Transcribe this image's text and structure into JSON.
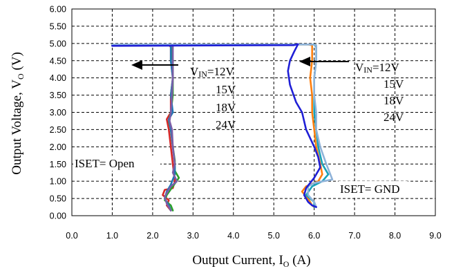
{
  "chart_data": {
    "type": "line",
    "xlabel": {
      "main": "Output Current, I",
      "sub": "O",
      "unit": " (A)"
    },
    "ylabel": {
      "main": "Output Voltage, V",
      "sub": "O",
      "unit": " (V)"
    },
    "xlim": [
      0,
      9
    ],
    "ylim": [
      0,
      6
    ],
    "grid": true,
    "x_ticks": [
      "0.0",
      "1.0",
      "2.0",
      "3.0",
      "4.0",
      "5.0",
      "6.0",
      "7.0",
      "8.0",
      "9.0"
    ],
    "y_ticks": [
      "0.00",
      "0.50",
      "1.00",
      "1.50",
      "2.00",
      "2.50",
      "3.00",
      "3.50",
      "4.00",
      "4.50",
      "5.00",
      "5.50",
      "6.00"
    ],
    "annotations": {
      "open_label": "ISET= Open",
      "gnd_label": "ISET= GND",
      "vin_left": {
        "prefix": "V",
        "sub": "IN",
        "value": "=12V"
      },
      "vin_right": {
        "prefix": "V",
        "sub": "IN",
        "value": "=12V"
      },
      "vin_list_left": [
        "15V",
        "18V",
        "24V"
      ],
      "vin_list_right": [
        "15V",
        "18V",
        "24V"
      ]
    },
    "series": [
      {
        "group": "open",
        "color": "#d62728",
        "points": [
          [
            1.0,
            4.95
          ],
          [
            2.4,
            4.95
          ],
          [
            2.45,
            4.9
          ],
          [
            2.45,
            4.5
          ],
          [
            2.5,
            4.0
          ],
          [
            2.45,
            3.5
          ],
          [
            2.45,
            3.0
          ],
          [
            2.35,
            2.8
          ],
          [
            2.4,
            2.5
          ],
          [
            2.45,
            2.0
          ],
          [
            2.5,
            1.5
          ],
          [
            2.55,
            1.0
          ],
          [
            2.5,
            0.8
          ],
          [
            2.3,
            0.75
          ],
          [
            2.25,
            0.6
          ],
          [
            2.4,
            0.45
          ],
          [
            2.35,
            0.3
          ],
          [
            2.45,
            0.15
          ]
        ]
      },
      {
        "group": "open",
        "color": "#2ca02c",
        "points": [
          [
            1.0,
            4.95
          ],
          [
            2.45,
            4.95
          ],
          [
            2.5,
            4.5
          ],
          [
            2.5,
            3.5
          ],
          [
            2.45,
            3.0
          ],
          [
            2.4,
            2.75
          ],
          [
            2.45,
            2.5
          ],
          [
            2.5,
            2.0
          ],
          [
            2.55,
            1.6
          ],
          [
            2.55,
            1.3
          ],
          [
            2.65,
            1.1
          ],
          [
            2.5,
            0.85
          ],
          [
            2.35,
            0.6
          ],
          [
            2.3,
            0.45
          ],
          [
            2.45,
            0.3
          ],
          [
            2.5,
            0.15
          ]
        ]
      },
      {
        "group": "open",
        "color": "#1f77b4",
        "points": [
          [
            1.0,
            4.95
          ],
          [
            2.45,
            4.95
          ],
          [
            2.45,
            4.5
          ],
          [
            2.5,
            4.0
          ],
          [
            2.45,
            3.5
          ],
          [
            2.5,
            3.0
          ],
          [
            2.4,
            2.8
          ],
          [
            2.45,
            2.5
          ],
          [
            2.5,
            2.0
          ],
          [
            2.55,
            1.5
          ],
          [
            2.55,
            1.2
          ],
          [
            2.45,
            0.9
          ],
          [
            2.35,
            0.7
          ],
          [
            2.3,
            0.5
          ],
          [
            2.4,
            0.3
          ],
          [
            2.45,
            0.15
          ]
        ]
      },
      {
        "group": "open",
        "color": "#7b5ea7",
        "points": [
          [
            1.0,
            4.95
          ],
          [
            2.5,
            4.95
          ],
          [
            2.5,
            4.5
          ],
          [
            2.5,
            4.0
          ],
          [
            2.48,
            3.5
          ],
          [
            2.45,
            3.0
          ],
          [
            2.42,
            2.75
          ],
          [
            2.48,
            2.5
          ],
          [
            2.5,
            2.0
          ],
          [
            2.55,
            1.5
          ],
          [
            2.5,
            1.25
          ],
          [
            2.6,
            1.0
          ],
          [
            2.45,
            0.85
          ],
          [
            2.3,
            0.55
          ],
          [
            2.35,
            0.35
          ],
          [
            2.45,
            0.15
          ]
        ]
      },
      {
        "group": "gnd",
        "color": "#ff7f0e",
        "points": [
          [
            1.0,
            4.97
          ],
          [
            5.85,
            4.97
          ],
          [
            5.95,
            4.95
          ],
          [
            5.95,
            4.5
          ],
          [
            5.9,
            4.0
          ],
          [
            5.95,
            3.5
          ],
          [
            5.95,
            3.0
          ],
          [
            6.0,
            2.5
          ],
          [
            6.05,
            2.0
          ],
          [
            6.15,
            1.5
          ],
          [
            6.2,
            1.2
          ],
          [
            6.1,
            1.0
          ],
          [
            5.8,
            0.85
          ],
          [
            5.7,
            0.7
          ],
          [
            5.85,
            0.5
          ],
          [
            5.95,
            0.3
          ],
          [
            6.0,
            0.25
          ]
        ]
      },
      {
        "group": "gnd",
        "color": "#17a2b8",
        "points": [
          [
            1.0,
            4.97
          ],
          [
            6.0,
            4.97
          ],
          [
            6.05,
            4.9
          ],
          [
            6.05,
            4.5
          ],
          [
            6.0,
            4.0
          ],
          [
            6.0,
            3.5
          ],
          [
            6.0,
            3.0
          ],
          [
            6.05,
            2.5
          ],
          [
            6.1,
            2.0
          ],
          [
            6.2,
            1.5
          ],
          [
            6.35,
            1.2
          ],
          [
            6.2,
            1.0
          ],
          [
            5.95,
            0.85
          ],
          [
            5.8,
            0.6
          ],
          [
            6.0,
            0.4
          ],
          [
            6.0,
            0.25
          ]
        ]
      },
      {
        "group": "gnd",
        "color": "#8fb3d9",
        "points": [
          [
            1.0,
            4.97
          ],
          [
            5.95,
            4.97
          ],
          [
            6.05,
            4.95
          ],
          [
            6.05,
            4.5
          ],
          [
            6.0,
            4.0
          ],
          [
            6.0,
            3.5
          ],
          [
            6.05,
            3.0
          ],
          [
            6.05,
            2.5
          ],
          [
            6.15,
            2.0
          ],
          [
            6.3,
            1.5
          ],
          [
            6.45,
            1.05
          ],
          [
            6.0,
            0.95
          ],
          [
            5.85,
            0.85
          ],
          [
            5.85,
            0.6
          ],
          [
            6.0,
            0.4
          ],
          [
            6.05,
            0.25
          ]
        ]
      },
      {
        "group": "gnd",
        "color": "#1f1fd6",
        "points": [
          [
            1.0,
            4.93
          ],
          [
            5.5,
            4.95
          ],
          [
            5.6,
            4.98
          ],
          [
            5.5,
            4.75
          ],
          [
            5.4,
            4.5
          ],
          [
            5.35,
            4.2
          ],
          [
            5.4,
            3.8
          ],
          [
            5.55,
            3.3
          ],
          [
            5.7,
            3.0
          ],
          [
            5.8,
            2.5
          ],
          [
            6.0,
            2.0
          ],
          [
            6.1,
            1.7
          ],
          [
            6.15,
            1.4
          ],
          [
            6.0,
            1.1
          ],
          [
            5.8,
            0.8
          ],
          [
            5.75,
            0.6
          ],
          [
            5.85,
            0.4
          ],
          [
            5.95,
            0.3
          ],
          [
            6.05,
            0.25
          ]
        ]
      }
    ]
  }
}
